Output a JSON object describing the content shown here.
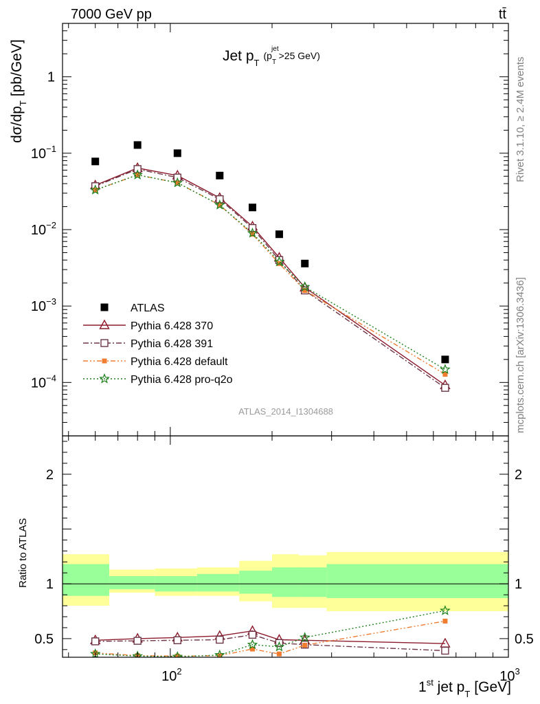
{
  "header": {
    "left": "7000 GeV pp",
    "right": "tt̄"
  },
  "side_labels": {
    "rivet": "Rivet 3.1.10, ≥ 2.4M events",
    "mcplots": "mcplots.cern.ch [arXiv:1306.3436]"
  },
  "watermark": "ATLAS_2014_I1304688",
  "chart_data": [
    {
      "type": "scatter",
      "panel": "main",
      "title": "Jet p_T (p_T^jet>25 GeV)",
      "title_main": "Jet p",
      "title_sub": "T",
      "title_paren_p": "(p",
      "title_paren_sub": "T",
      "title_paren_sup": "jet",
      "title_paren_rest": ">25 GeV)",
      "ylabel": "dσ/dp_T [pb/GeV]",
      "ylabel_main": "dσ/dp",
      "ylabel_sub": "T",
      "ylabel_rest": "[pb/GeV]",
      "xlabel": "1st jet p_T [GeV]",
      "xlabel_main": "1",
      "xlabel_sup": "st",
      "xlabel_mid": " jet p",
      "xlabel_sub": "T",
      "xlabel_rest": "[GeV]",
      "x_scale": "log",
      "y_scale": "log",
      "xlim": [
        48,
        1000
      ],
      "ylim": [
        2e-05,
        5
      ],
      "x_ticklabels": [
        {
          "x": 100,
          "base": "10",
          "exp": "2"
        },
        {
          "x": 1000,
          "base": "10",
          "exp": "3"
        }
      ],
      "y_ticklabels": [
        {
          "y": 1,
          "base": "1",
          "exp": ""
        },
        {
          "y": 0.1,
          "base": "10",
          "exp": "−1"
        },
        {
          "y": 0.01,
          "base": "10",
          "exp": "−2"
        },
        {
          "y": 0.001,
          "base": "10",
          "exp": "−3"
        },
        {
          "y": 0.0001,
          "base": "10",
          "exp": "−4"
        }
      ],
      "legend_position": "bottom-left",
      "x": [
        60,
        80,
        105,
        140,
        175,
        210,
        250,
        650
      ],
      "series": [
        {
          "name": "ATLAS",
          "color": "#000000",
          "marker": "filled-square",
          "line": "none",
          "values": [
            0.078,
            0.128,
            0.1,
            0.051,
            0.0195,
            0.0087,
            0.0036,
            0.0002
          ]
        },
        {
          "name": "Pythia 6.428 370",
          "color": "#8b1a2b",
          "marker": "open-triangle",
          "line": "solid",
          "values": [
            0.038,
            0.064,
            0.051,
            0.026,
            0.011,
            0.0043,
            0.00175,
            9.2e-05
          ]
        },
        {
          "name": "Pythia 6.428 391",
          "color": "#6b3545",
          "marker": "open-square",
          "line": "dashdot",
          "values": [
            0.037,
            0.062,
            0.048,
            0.025,
            0.0105,
            0.004,
            0.0016,
            8.5e-05
          ]
        },
        {
          "name": "Pythia 6.428 default",
          "color": "#f07c30",
          "marker": "filled-square",
          "line": "dashdotdot",
          "values": [
            0.033,
            0.052,
            0.041,
            0.021,
            0.0087,
            0.0036,
            0.0016,
            0.000128
          ]
        },
        {
          "name": "Pythia 6.428 pro-q2o",
          "color": "#1a7f1a",
          "marker": "open-star",
          "line": "dotted",
          "values": [
            0.033,
            0.052,
            0.041,
            0.021,
            0.009,
            0.0038,
            0.00178,
            0.000148
          ]
        }
      ]
    },
    {
      "type": "line",
      "panel": "ratio",
      "ylabel": "Ratio to ATLAS",
      "x_scale": "log",
      "xlim": [
        48,
        1000
      ],
      "ylim": [
        0.33,
        2.35
      ],
      "y_ticklabels": [
        "0.5",
        "1",
        "2"
      ],
      "reference": 1,
      "bands": {
        "edges": [
          48,
          66,
          90,
          120,
          160,
          200,
          240,
          290,
          1000
        ],
        "yellow_color": "#ffff99",
        "green_color": "#99ff99",
        "yellow": [
          [
            0.8,
            1.27
          ],
          [
            0.92,
            1.13
          ],
          [
            0.89,
            1.14
          ],
          [
            0.89,
            1.15
          ],
          [
            0.84,
            1.21
          ],
          [
            0.78,
            1.27
          ],
          [
            0.78,
            1.26
          ],
          [
            0.75,
            1.29
          ]
        ],
        "green": [
          [
            0.89,
            1.18
          ],
          [
            0.95,
            1.07
          ],
          [
            0.93,
            1.07
          ],
          [
            0.93,
            1.09
          ],
          [
            0.91,
            1.12
          ],
          [
            0.88,
            1.15
          ],
          [
            0.88,
            1.15
          ],
          [
            0.87,
            1.18
          ]
        ]
      },
      "x": [
        60,
        80,
        105,
        140,
        175,
        210,
        250,
        650
      ],
      "series": [
        {
          "name": "Pythia 6.428 370",
          "values": [
            0.485,
            0.5,
            0.51,
            0.525,
            0.57,
            0.49,
            0.485,
            0.455
          ]
        },
        {
          "name": "Pythia 6.428 391",
          "values": [
            0.475,
            0.48,
            0.485,
            0.49,
            0.535,
            0.46,
            0.445,
            0.39
          ]
        },
        {
          "name": "Pythia 6.428 default",
          "values": [
            0.37,
            0.345,
            0.34,
            0.345,
            0.405,
            0.36,
            0.44,
            0.66
          ]
        },
        {
          "name": "Pythia 6.428 pro-q2o",
          "values": [
            0.36,
            0.34,
            0.335,
            0.35,
            0.445,
            0.425,
            0.51,
            0.755
          ]
        }
      ]
    }
  ]
}
